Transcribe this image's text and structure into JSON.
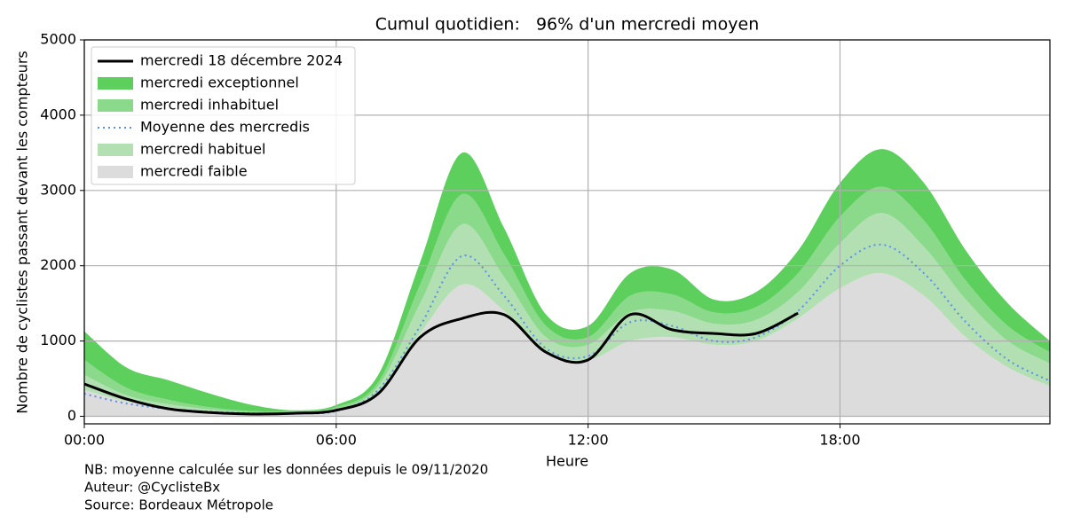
{
  "chart_data": {
    "type": "band-line",
    "title": "Cumul quotidien:   96% d'un mercredi moyen",
    "xlabel": "Heure",
    "ylabel": "Nombre de cyclistes passant devant les compteurs",
    "notes": [
      "NB: moyenne calculée sur les données depuis le 09/11/2020",
      "Auteur: @CyclisteBx",
      "Source: Bordeaux Métropole"
    ],
    "x": [
      0,
      1,
      2,
      3,
      4,
      5,
      6,
      7,
      8,
      9,
      10,
      11,
      12,
      13,
      14,
      15,
      16,
      17,
      18,
      19,
      20,
      21,
      22,
      23
    ],
    "xlim": [
      0,
      23
    ],
    "xticks": [
      {
        "value": 0,
        "label": "00:00"
      },
      {
        "value": 6,
        "label": "06:00"
      },
      {
        "value": 12,
        "label": "12:00"
      },
      {
        "value": 18,
        "label": "18:00"
      }
    ],
    "ylim": [
      -100,
      5000
    ],
    "yticks": [
      0,
      1000,
      2000,
      3000,
      4000,
      5000
    ],
    "grid": true,
    "legend": "upper-left",
    "series": [
      {
        "name": "mercredi 18 décembre 2024",
        "style": "line",
        "color": "#000000",
        "values": [
          430,
          230,
          100,
          50,
          30,
          40,
          80,
          300,
          1050,
          1300,
          1350,
          850,
          750,
          1350,
          1150,
          1100,
          1100,
          1370,
          null,
          null,
          null,
          null,
          null,
          null
        ]
      },
      {
        "name": "mercredi exceptionnel",
        "style": "band",
        "color": "#5ccf5c",
        "values": [
          380,
          270,
          260,
          180,
          80,
          10,
          30,
          100,
          300,
          550,
          350,
          150,
          150,
          300,
          330,
          170,
          200,
          300,
          450,
          500,
          500,
          400,
          300,
          150
        ]
      },
      {
        "name": "mercredi inhabituel",
        "style": "band",
        "color": "#8bd98b",
        "values": [
          200,
          100,
          60,
          30,
          20,
          20,
          30,
          50,
          250,
          400,
          300,
          150,
          100,
          220,
          220,
          150,
          170,
          250,
          350,
          350,
          350,
          250,
          200,
          150
        ]
      },
      {
        "name": "Moyenne des mercredis",
        "style": "dotted",
        "color": "#5b8def",
        "values": [
          300,
          170,
          100,
          60,
          40,
          40,
          70,
          350,
          1200,
          2130,
          1600,
          900,
          800,
          1250,
          1200,
          1000,
          1050,
          1400,
          2000,
          2280,
          1900,
          1250,
          750,
          470
        ]
      },
      {
        "name": "mercredi habituel",
        "style": "band",
        "color": "#b3e0b3",
        "values": [
          200,
          80,
          40,
          20,
          10,
          10,
          30,
          100,
          400,
          800,
          450,
          200,
          200,
          380,
          350,
          280,
          280,
          350,
          600,
          800,
          650,
          500,
          350,
          300
        ]
      },
      {
        "name": "mercredi faible",
        "style": "band",
        "color": "#dcdcdc",
        "values": [
          350,
          200,
          120,
          70,
          40,
          40,
          60,
          300,
          1100,
          1750,
          1400,
          850,
          750,
          1000,
          1050,
          950,
          1000,
          1300,
          1700,
          1900,
          1600,
          1050,
          650,
          400
        ]
      }
    ]
  }
}
